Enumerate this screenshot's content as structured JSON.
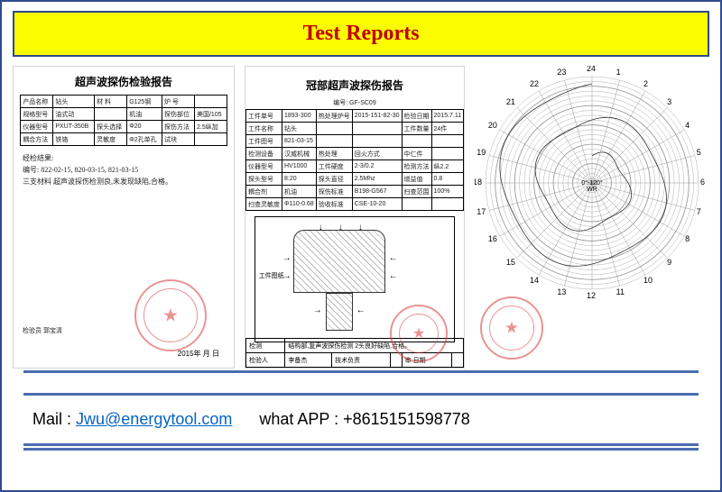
{
  "header": {
    "title": "Test Reports"
  },
  "report1": {
    "title": "超声波探伤检验报告",
    "rows": [
      [
        "产品名称",
        "钻头",
        "材 料",
        "G125钢",
        "炉 号",
        ""
      ],
      [
        "规格型号",
        "油式动",
        "",
        "机油",
        "探伤部位",
        "美国/105"
      ],
      [
        "仪器型号",
        "PXUT-350B",
        "探头选择",
        "Φ20",
        "探伤方法",
        "2.5纵加"
      ],
      [
        "耦合方法",
        "铁铬",
        "灵敏度",
        "Φ2孔单孔",
        "试块",
        ""
      ]
    ],
    "body_lines": [
      "经检结果:",
      "编号: 822-02-15,  820-03-15,  821-03-15",
      "三支材料 超声波探伤检测良,未发现缺陷,合格。"
    ],
    "sig": {
      "l": "检验员  郭宝清",
      "r": ""
    },
    "date": "2015年 月 日"
  },
  "report2": {
    "title": "冠部超声波探伤报告",
    "subtitle": "编号: GF-SC09",
    "rows": [
      [
        "工件单号",
        "1893-300",
        "热处理炉号",
        "2015-151-82-30",
        "检验日期",
        "2015.7.11"
      ],
      [
        "工件名称",
        "钻头",
        "",
        "",
        "工件数量",
        "24件"
      ],
      [
        "工件图号",
        "821-03-15",
        "",
        "",
        "",
        ""
      ],
      [
        "检测设备",
        "汉威机械",
        "热处理",
        "回火方式",
        "中仁件",
        ""
      ],
      [
        "仪器型号",
        "HV1000",
        "工件硬度",
        "2-3/0.2",
        "检测方法",
        "纵2.2"
      ],
      [
        "探头型号",
        "8:20",
        "探头直径",
        "2.5Mhz",
        "增益值",
        "0.8"
      ],
      [
        "耦合剂",
        "机油",
        "探伤标准",
        "B198-G567",
        "扫查范围",
        "100%"
      ],
      [
        "扫查灵敏度",
        "Φ110-0.68",
        "验收标准",
        "CSE-10-20",
        "",
        ""
      ]
    ],
    "label": "工件图纸",
    "footer": [
      [
        "检测",
        "结构部,复声波探伤检测 2头良好缺陷,合格。"
      ],
      [
        "检验人",
        "李备杰",
        "技术负责",
        "",
        "审 日期",
        ""
      ]
    ]
  },
  "report3": {
    "ticks": [
      "24",
      "1",
      "2",
      "3",
      "4",
      "5",
      "6",
      "7",
      "8",
      "9",
      "10",
      "11",
      "12",
      "13",
      "14",
      "15",
      "16",
      "17",
      "18",
      "19",
      "20",
      "21",
      "22",
      "23"
    ],
    "center_label": "0°-120°",
    "wrap_label": "WR"
  },
  "contact": {
    "mail_label": "Mail : ",
    "mail": "Jwu@energytool.com",
    "wa_label": "what APP : ",
    "wa": "+8615151598778"
  },
  "colors": {
    "border": "#2e4a8f",
    "header_bg": "#fdfd02",
    "title": "#c00000",
    "link": "#0563c1",
    "stamp": "#d93a3a"
  }
}
